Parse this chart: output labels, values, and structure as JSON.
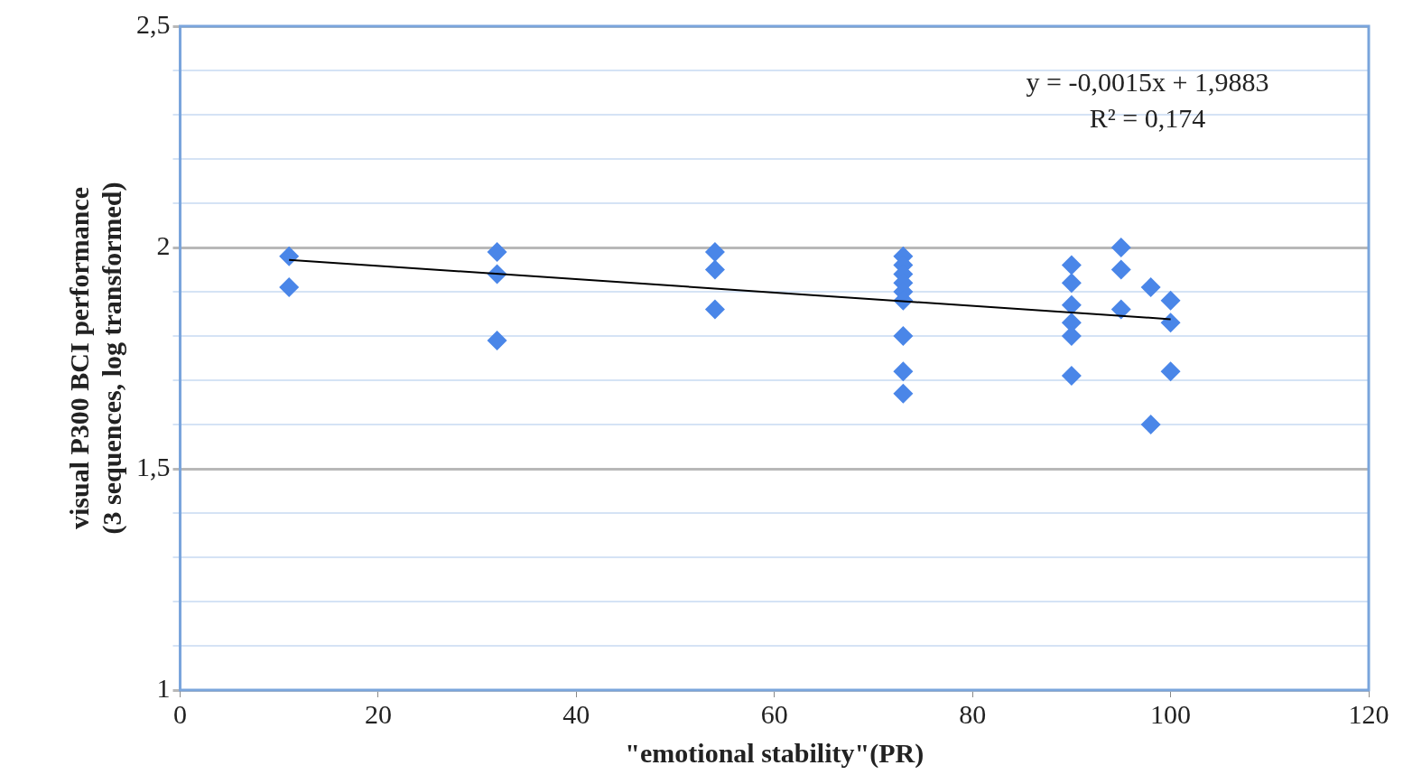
{
  "chart_data": {
    "type": "scatter",
    "xlabel": "\"emotional stability\"(PR)",
    "ylabel": "visual P300 BCI performance\n(3 sequences, log transformed)",
    "xlim": [
      0,
      120
    ],
    "xticks": [
      0,
      20,
      40,
      60,
      80,
      100,
      120
    ],
    "ylim": [
      1,
      2.5
    ],
    "yticks": [
      1,
      {
        "value": 1.1,
        "label": null
      },
      {
        "value": 1.2,
        "label": null
      },
      {
        "value": 1.3,
        "label": null
      },
      {
        "value": 1.4,
        "label": null
      },
      {
        "value": 1.5,
        "label": "1,5"
      },
      {
        "value": 1.6,
        "label": null
      },
      {
        "value": 1.7,
        "label": null
      },
      {
        "value": 1.8,
        "label": null
      },
      {
        "value": 1.9,
        "label": null
      },
      2,
      {
        "value": 2.1,
        "label": null
      },
      {
        "value": 2.2,
        "label": null
      },
      {
        "value": 2.3,
        "label": null
      },
      {
        "value": 2.4,
        "label": null
      },
      {
        "value": 2.5,
        "label": "2,5"
      }
    ],
    "grid": "y",
    "legend": false,
    "marker": "diamond",
    "series": [
      {
        "color": "#4a86e8",
        "x": [
          11,
          11,
          32,
          32,
          32,
          54,
          54,
          54,
          73,
          73,
          73,
          73,
          73,
          73,
          73,
          73,
          73,
          90,
          90,
          90,
          90,
          90,
          90,
          95,
          95,
          95,
          98,
          98,
          100,
          100,
          100
        ],
        "values": [
          1.98,
          1.91,
          1.99,
          1.94,
          1.79,
          1.99,
          1.95,
          1.86,
          1.98,
          1.96,
          1.94,
          1.92,
          1.9,
          1.88,
          1.8,
          1.72,
          1.67,
          1.96,
          1.92,
          1.87,
          1.83,
          1.8,
          1.71,
          2.0,
          1.95,
          1.86,
          1.91,
          1.6,
          1.88,
          1.83,
          1.72
        ]
      },
      {
        "type": "line",
        "color": "#000000",
        "marker": "none",
        "x": [
          11,
          100
        ],
        "values": [
          1.972,
          1.838
        ]
      }
    ],
    "annotations": [
      "y = -0,0015x + 1,9883",
      "R² = 0,174"
    ]
  }
}
